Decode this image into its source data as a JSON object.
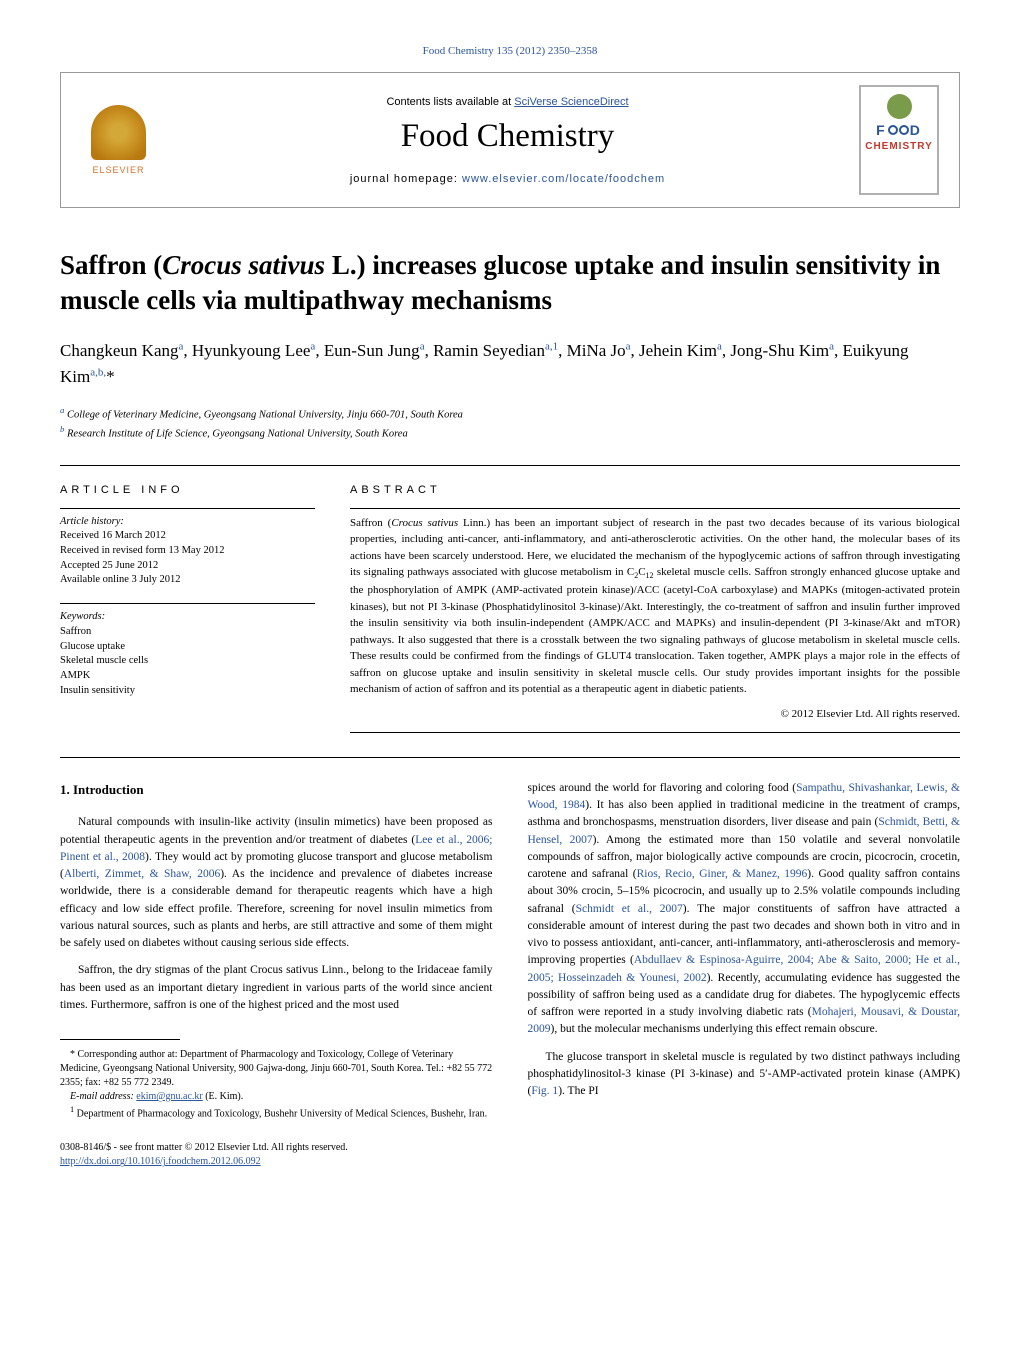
{
  "journal_ref": "Food Chemistry 135 (2012) 2350–2358",
  "header": {
    "publisher": "ELSEVIER",
    "contents_prefix": "Contents lists available at ",
    "contents_link": "SciVerse ScienceDirect",
    "journal_name": "Food Chemistry",
    "homepage_prefix": "journal homepage: ",
    "homepage_link": "www.elsevier.com/locate/foodchem",
    "logo_food": "F",
    "logo_d": "D",
    "logo_chem": "CHEMISTRY"
  },
  "title": {
    "prefix": "Saffron (",
    "italic": "Crocus sativus",
    "suffix": " L.) increases glucose uptake and insulin sensitivity in muscle cells via multipathway mechanisms"
  },
  "authors_html": "Changkeun Kang<sup>a</sup>, Hyunkyoung Lee<sup>a</sup>, Eun-Sun Jung<sup>a</sup>, Ramin Seyedian<sup>a,1</sup>, MiNa Jo<sup>a</sup>, Jehein Kim<sup>a</sup>, Jong-Shu Kim<sup>a</sup>, Euikyung Kim<sup>a,b,</sup>*",
  "affiliations": {
    "a": "College of Veterinary Medicine, Gyeongsang National University, Jinju 660-701, South Korea",
    "b": "Research Institute of Life Science, Gyeongsang National University, South Korea"
  },
  "article_info": {
    "heading": "ARTICLE INFO",
    "history_label": "Article history:",
    "received": "Received 16 March 2012",
    "revised": "Received in revised form 13 May 2012",
    "accepted": "Accepted 25 June 2012",
    "online": "Available online 3 July 2012",
    "keywords_label": "Keywords:",
    "keywords": [
      "Saffron",
      "Glucose uptake",
      "Skeletal muscle cells",
      "AMPK",
      "Insulin sensitivity"
    ]
  },
  "abstract": {
    "heading": "ABSTRACT",
    "text_html": "Saffron (<span class=\"italic\">Crocus sativus</span> Linn.) has been an important subject of research in the past two decades because of its various biological properties, including anti-cancer, anti-inflammatory, and anti-atherosclerotic activities. On the other hand, the molecular bases of its actions have been scarcely understood. Here, we elucidated the mechanism of the hypoglycemic actions of saffron through investigating its signaling pathways associated with glucose metabolism in C<sub>2</sub>C<sub>12</sub> skeletal muscle cells. Saffron strongly enhanced glucose uptake and the phosphorylation of AMPK (AMP-activated protein kinase)/ACC (acetyl-CoA carboxylase) and MAPKs (mitogen-activated protein kinases), but not PI 3-kinase (Phosphatidylinositol 3-kinase)/Akt. Interestingly, the co-treatment of saffron and insulin further improved the insulin sensitivity via both insulin-independent (AMPK/ACC and MAPKs) and insulin-dependent (PI 3-kinase/Akt and mTOR) pathways. It also suggested that there is a crosstalk between the two signaling pathways of glucose metabolism in skeletal muscle cells. These results could be confirmed from the findings of GLUT4 translocation. Taken together, AMPK plays a major role in the effects of saffron on glucose uptake and insulin sensitivity in skeletal muscle cells. Our study provides important insights for the possible mechanism of action of saffron and its potential as a therapeutic agent in diabetic patients.",
    "copyright": "© 2012 Elsevier Ltd. All rights reserved."
  },
  "intro": {
    "heading": "1. Introduction",
    "para1_html": "Natural compounds with insulin-like activity (insulin mimetics) have been proposed as potential therapeutic agents in the prevention and/or treatment of diabetes (<span class=\"ref-link\">Lee et al., 2006; Pinent et al., 2008</span>). They would act by promoting glucose transport and glucose metabolism (<span class=\"ref-link\">Alberti, Zimmet, & Shaw, 2006</span>). As the incidence and prevalence of diabetes increase worldwide, there is a considerable demand for therapeutic reagents which have a high efficacy and low side effect profile. Therefore, screening for novel insulin mimetics from various natural sources, such as plants and herbs, are still attractive and some of them might be safely used on diabetes without causing serious side effects.",
    "para2_html": "Saffron, the dry stigmas of the plant <span class=\"italic\">Crocus sativus</span> Linn., belong to the Iridaceae family has been used as an important dietary ingredient in various parts of the world since ancient times. Furthermore, saffron is one of the highest priced and the most used",
    "para3_html": "spices around the world for flavoring and coloring food (<span class=\"ref-link\">Sampathu, Shivashankar, Lewis, & Wood, 1984</span>). It has also been applied in traditional medicine in the treatment of cramps, asthma and bronchospasms, menstruation disorders, liver disease and pain (<span class=\"ref-link\">Schmidt, Betti, & Hensel, 2007</span>). Among the estimated more than 150 volatile and several nonvolatile compounds of saffron, major biologically active compounds are crocin, picocrocin, crocetin, carotene and safranal (<span class=\"ref-link\">Rios, Recio, Giner, & Manez, 1996</span>). Good quality saffron contains about 30% crocin, 5–15% picocrocin, and usually up to 2.5% volatile compounds including safranal (<span class=\"ref-link\">Schmidt et al., 2007</span>). The major constituents of saffron have attracted a considerable amount of interest during the past two decades and shown both <span class=\"italic\">in vitro</span> and <span class=\"italic\">in vivo</span> to possess antioxidant, anti-cancer, anti-inflammatory, anti-atherosclerosis and memory-improving properties (<span class=\"ref-link\">Abdullaev & Espinosa-Aguirre, 2004; Abe & Saito, 2000; He et al., 2005; Hosseinzadeh & Younesi, 2002</span>). Recently, accumulating evidence has suggested the possibility of saffron being used as a candidate drug for diabetes. The hypoglycemic effects of saffron were reported in a study involving diabetic rats (<span class=\"ref-link\">Mohajeri, Mousavi, & Doustar, 2009</span>), but the molecular mechanisms underlying this effect remain obscure.",
    "para4_html": "The glucose transport in skeletal muscle is regulated by two distinct pathways including phosphatidylinositol-3 kinase (PI 3-kinase) and 5′-AMP-activated protein kinase (AMPK) (<span class=\"ref-link\">Fig. 1</span>). The PI"
  },
  "footnotes": {
    "corresponding": "* Corresponding author at: Department of Pharmacology and Toxicology, College of Veterinary Medicine, Gyeongsang National University, 900 Gajwa-dong, Jinju 660-701, South Korea. Tel.: +82 55 772 2355; fax: +82 55 772 2349.",
    "email_label": "E-mail address: ",
    "email": "ekim@gnu.ac.kr",
    "email_suffix": " (E. Kim).",
    "fn1_html": "<sup>1</sup> Department of Pharmacology and Toxicology, Bushehr University of Medical Sciences, Bushehr, Iran."
  },
  "bottom": {
    "issn": "0308-8146/$ - see front matter © 2012 Elsevier Ltd. All rights reserved.",
    "doi": "http://dx.doi.org/10.1016/j.foodchem.2012.06.092"
  }
}
